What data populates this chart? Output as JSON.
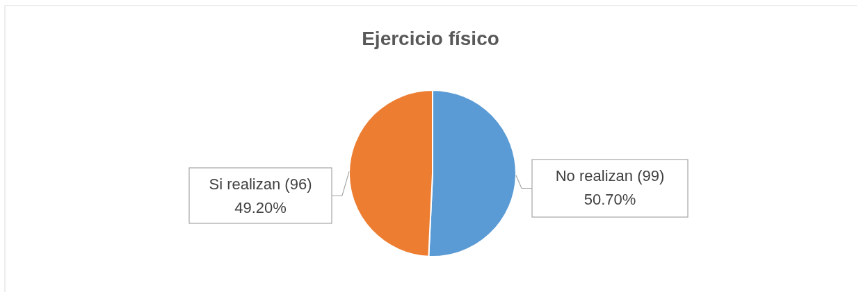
{
  "chart_data": {
    "type": "pie",
    "title": "Ejercicio físico",
    "categories": [
      "No realizan (99)",
      "Si realizan (96)"
    ],
    "values": [
      50.7,
      49.2
    ],
    "value_labels": [
      "50.70%",
      "49.20%"
    ],
    "colors": [
      "#5b9bd5",
      "#ed7d31"
    ],
    "legend": false
  }
}
